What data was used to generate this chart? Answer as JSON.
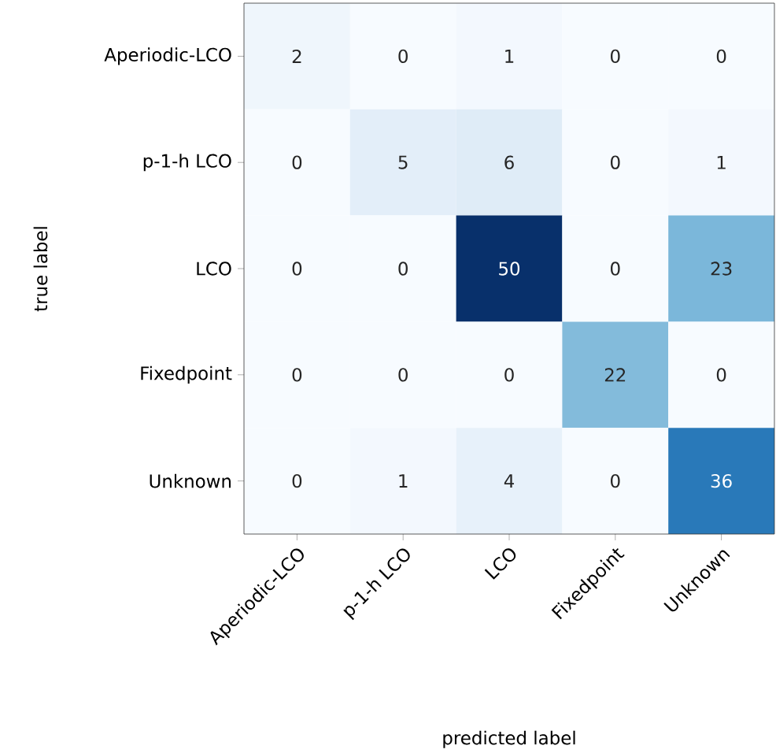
{
  "chart_data": {
    "type": "heatmap",
    "xlabel": "predicted label",
    "ylabel": "true label",
    "categories": [
      "Aperiodic-LCO",
      "p-1-h LCO",
      "LCO",
      "Fixedpoint",
      "Unknown"
    ],
    "y_categories": [
      "Aperiodic-LCO",
      "p-1-h LCO",
      "LCO",
      "Fixedpoint",
      "Unknown"
    ],
    "cells": [
      [
        2,
        0,
        1,
        0,
        0
      ],
      [
        0,
        5,
        6,
        0,
        1
      ],
      [
        0,
        0,
        50,
        0,
        23
      ],
      [
        0,
        0,
        0,
        22,
        0
      ],
      [
        0,
        1,
        4,
        0,
        36
      ]
    ],
    "data_labels": true,
    "grid": false
  }
}
